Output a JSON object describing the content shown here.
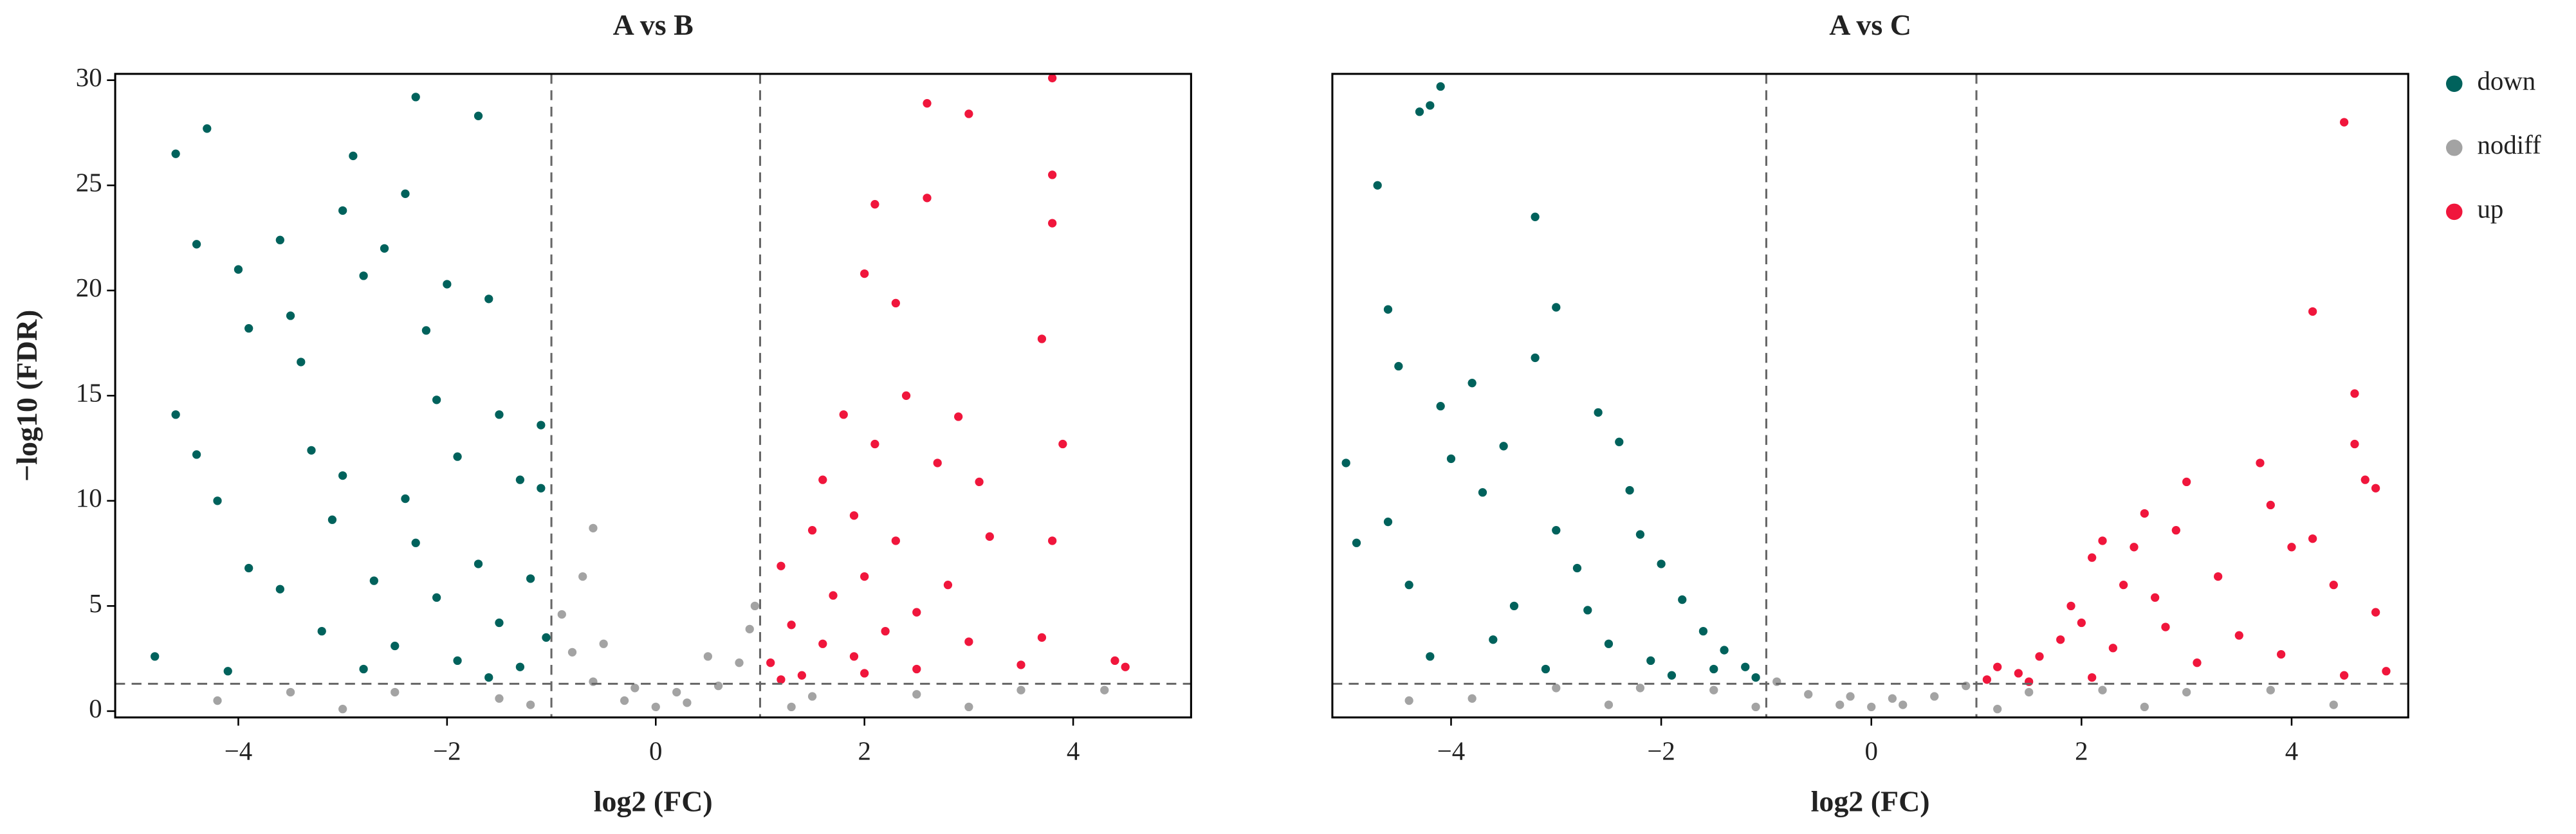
{
  "chart_data": [
    {
      "type": "scatter",
      "title": "A vs B",
      "x_label": "log2 (FC)",
      "y_label": "−log10 (FDR)",
      "xlim": [
        -5.18,
        5.13
      ],
      "ylim": [
        -0.3,
        30.3
      ],
      "xticks": [
        {
          "value": -4,
          "label": "−4"
        },
        {
          "value": -2,
          "label": "−2"
        },
        0,
        2,
        4
      ],
      "yticks": [
        0,
        5,
        10,
        15,
        20,
        25,
        30
      ],
      "threshold_lines": {
        "x": [
          -1,
          1
        ],
        "y": 1.3
      },
      "series": [
        {
          "color": "#00625c",
          "x": [
            -4.8,
            -4.6,
            -4.6,
            -4.4,
            -4.3,
            -4.4,
            -4.2,
            -4.0,
            -3.9,
            -3.9,
            -3.6,
            -3.5,
            -3.4,
            -3.3,
            -3.1,
            -3.0,
            -2.9,
            -2.8,
            -2.6,
            -2.4,
            -2.3,
            -2.2,
            -2.1,
            -2.0,
            -1.9,
            -1.7,
            -1.6,
            -1.5,
            -1.3,
            -1.1,
            -1.1,
            -3.6,
            -3.2,
            -2.7,
            -2.5,
            -2.3,
            -2.1,
            -1.9,
            -1.7,
            -1.5,
            -1.3,
            -1.2,
            -1.05,
            -2.8,
            -1.6,
            -4.1,
            -3.0,
            -2.4
          ],
          "y": [
            2.6,
            14.1,
            26.5,
            22.2,
            27.7,
            12.2,
            10.0,
            21.0,
            18.2,
            6.8,
            22.4,
            18.8,
            16.6,
            12.4,
            9.1,
            23.8,
            26.4,
            20.7,
            22.0,
            24.6,
            29.2,
            18.1,
            14.8,
            20.3,
            12.1,
            28.3,
            19.6,
            14.1,
            11.0,
            13.6,
            10.6,
            5.8,
            3.8,
            6.2,
            3.1,
            8.0,
            5.4,
            2.4,
            7.0,
            4.2,
            2.1,
            6.3,
            3.5,
            2.0,
            1.6,
            1.9,
            11.2,
            10.1
          ]
        },
        {
          "color": "#a3a3a3",
          "x": [
            0,
            -0.3,
            0.3,
            -0.6,
            0.6,
            -0.8,
            0.8,
            -0.9,
            0.9,
            -0.6,
            -0.7,
            0.95,
            -1.5,
            1.5,
            -2.5,
            2.5,
            -3.5,
            3.5,
            -4.2,
            4.3,
            -0.2,
            0.2,
            -1.2,
            1.3,
            -3.0,
            3.0,
            -0.5,
            0.5
          ],
          "y": [
            0.2,
            0.5,
            0.4,
            1.4,
            1.2,
            2.8,
            2.3,
            4.6,
            3.9,
            8.7,
            6.4,
            5.0,
            0.6,
            0.7,
            0.9,
            0.8,
            0.9,
            1.0,
            0.5,
            1.0,
            1.1,
            0.9,
            0.3,
            0.2,
            0.1,
            0.2,
            3.2,
            2.6
          ]
        },
        {
          "color": "#f0163c",
          "x": [
            1.1,
            1.2,
            1.3,
            1.4,
            1.5,
            1.6,
            1.6,
            1.7,
            1.8,
            1.9,
            1.9,
            2.0,
            2.0,
            2.1,
            2.1,
            2.2,
            2.3,
            2.3,
            2.4,
            2.5,
            2.6,
            2.6,
            2.7,
            2.8,
            2.9,
            3.0,
            3.0,
            3.1,
            3.2,
            3.5,
            3.7,
            3.8,
            3.8,
            3.8,
            3.9,
            3.8,
            3.7,
            4.4,
            4.5,
            1.2,
            2.0,
            2.5
          ],
          "y": [
            2.3,
            6.9,
            4.1,
            1.7,
            8.6,
            3.2,
            11.0,
            5.5,
            14.1,
            2.6,
            9.3,
            20.8,
            6.4,
            24.1,
            12.7,
            3.8,
            19.4,
            8.1,
            15.0,
            4.7,
            24.4,
            28.9,
            11.8,
            6.0,
            14.0,
            28.4,
            3.3,
            10.9,
            8.3,
            2.2,
            17.7,
            30.1,
            25.5,
            23.2,
            12.7,
            8.1,
            3.5,
            2.4,
            2.1,
            1.5,
            1.8,
            2.0
          ]
        }
      ]
    },
    {
      "type": "scatter",
      "title": "A vs C",
      "x_label": "log2 (FC)",
      "xlim": [
        -5.13,
        5.11
      ],
      "ylim": [
        -0.3,
        30.3
      ],
      "xticks": [
        {
          "value": -4,
          "label": "−4"
        },
        {
          "value": -2,
          "label": "−2"
        },
        0,
        2,
        4
      ],
      "threshold_lines": {
        "x": [
          -1,
          1
        ],
        "y": 1.3
      },
      "legend": "right",
      "series": [
        {
          "name": "down",
          "color": "#00625c",
          "x": [
            -5.0,
            -4.9,
            -4.7,
            -4.6,
            -4.6,
            -4.5,
            -4.4,
            -4.3,
            -4.2,
            -4.1,
            -4.1,
            -4.0,
            -3.8,
            -3.7,
            -3.5,
            -3.4,
            -3.2,
            -3.2,
            -3.0,
            -3.0,
            -2.8,
            -2.6,
            -2.4,
            -2.3,
            -2.2,
            -2.0,
            -1.8,
            -1.6,
            -1.4,
            -1.2,
            -1.1,
            -2.5,
            -2.1,
            -3.6,
            -4.2,
            -3.1,
            -1.9,
            -2.7,
            -1.5
          ],
          "y": [
            11.8,
            8.0,
            25.0,
            19.1,
            9.0,
            16.4,
            6.0,
            28.5,
            28.8,
            29.7,
            14.5,
            12.0,
            15.6,
            10.4,
            12.6,
            5.0,
            23.5,
            16.8,
            19.2,
            8.6,
            6.8,
            14.2,
            12.8,
            10.5,
            8.4,
            7.0,
            5.3,
            3.8,
            2.9,
            2.1,
            1.6,
            3.2,
            2.4,
            3.4,
            2.6,
            2.0,
            1.7,
            4.8,
            2.0
          ]
        },
        {
          "name": "nodiff",
          "color": "#a3a3a3",
          "x": [
            0,
            -0.3,
            0.3,
            -0.6,
            0.6,
            -0.9,
            0.9,
            -1.5,
            1.5,
            -2.2,
            2.2,
            -3.0,
            3.0,
            -3.8,
            3.8,
            -4.4,
            4.4,
            -1.1,
            1.2,
            -2.5,
            2.6,
            -0.2,
            0.2
          ],
          "y": [
            0.2,
            0.3,
            0.3,
            0.8,
            0.7,
            1.4,
            1.2,
            1.0,
            0.9,
            1.1,
            1.0,
            1.1,
            0.9,
            0.6,
            1.0,
            0.5,
            0.3,
            0.2,
            0.1,
            0.3,
            0.2,
            0.7,
            0.6
          ]
        },
        {
          "name": "up",
          "color": "#f0163c",
          "x": [
            1.1,
            1.2,
            1.4,
            1.6,
            1.8,
            1.9,
            2.0,
            2.1,
            2.2,
            2.3,
            2.4,
            2.5,
            2.6,
            2.7,
            2.8,
            2.9,
            3.0,
            3.1,
            3.3,
            3.5,
            3.7,
            3.8,
            4.0,
            4.2,
            4.2,
            4.4,
            4.5,
            4.6,
            4.6,
            4.7,
            4.8,
            4.8,
            4.9,
            4.5,
            3.9,
            1.5,
            2.1
          ],
          "y": [
            1.5,
            2.1,
            1.8,
            2.6,
            3.4,
            5.0,
            4.2,
            7.3,
            8.1,
            3.0,
            6.0,
            7.8,
            9.4,
            5.4,
            4.0,
            8.6,
            10.9,
            2.3,
            6.4,
            3.6,
            11.8,
            9.8,
            7.8,
            19.0,
            8.2,
            6.0,
            28.0,
            15.1,
            12.7,
            11.0,
            10.6,
            4.7,
            1.9,
            1.7,
            2.7,
            1.4,
            1.6
          ]
        }
      ]
    }
  ]
}
